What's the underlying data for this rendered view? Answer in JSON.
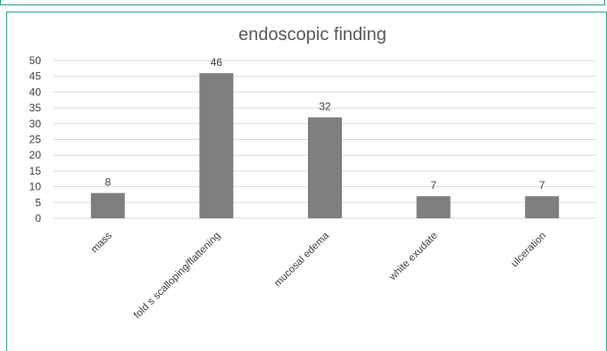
{
  "chart_data": {
    "type": "bar",
    "title": "endoscopic finding",
    "categories": [
      "mass",
      "fold s scalloping/flattening",
      "mucosal edema",
      "white exudate",
      "ulceration"
    ],
    "values": [
      8,
      46,
      32,
      7,
      7
    ],
    "data_labels": [
      "8",
      "46",
      "32",
      "7",
      "7"
    ],
    "ylim": [
      0,
      50
    ],
    "yticks": [
      0,
      5,
      10,
      15,
      20,
      25,
      30,
      35,
      40,
      45,
      50
    ],
    "grid": true,
    "legend": "none",
    "bar_color": "#7f7f7f",
    "grid_color": "#d9d9d9",
    "frame_color": "#2aa58f"
  }
}
